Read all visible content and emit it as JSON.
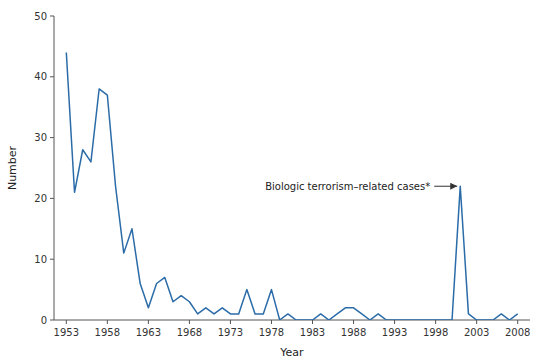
{
  "chart_data": {
    "type": "line",
    "x": [
      1953,
      1954,
      1955,
      1956,
      1957,
      1958,
      1959,
      1960,
      1961,
      1962,
      1963,
      1964,
      1965,
      1966,
      1967,
      1968,
      1969,
      1970,
      1971,
      1972,
      1973,
      1974,
      1975,
      1976,
      1977,
      1978,
      1979,
      1980,
      1981,
      1982,
      1983,
      1984,
      1985,
      1986,
      1987,
      1988,
      1989,
      1990,
      1991,
      1992,
      1993,
      1994,
      1995,
      1996,
      1997,
      1998,
      1999,
      2000,
      2001,
      2002,
      2003,
      2004,
      2005,
      2006,
      2007,
      2008
    ],
    "values": [
      44,
      21,
      28,
      26,
      38,
      37,
      22,
      11,
      15,
      6,
      2,
      6,
      7,
      3,
      4,
      3,
      1,
      2,
      1,
      2,
      1,
      1,
      5,
      1,
      1,
      5,
      0,
      1,
      0,
      0,
      0,
      1,
      0,
      1,
      2,
      2,
      1,
      0,
      1,
      0,
      0,
      0,
      0,
      0,
      0,
      0,
      0,
      0,
      22,
      1,
      0,
      0,
      0,
      1,
      0,
      1
    ],
    "color": "#2b6ca8",
    "xlabel": "Year",
    "ylabel": "Number",
    "xlim": [
      1951.5,
      2009.5
    ],
    "ylim": [
      0,
      50
    ],
    "xticks": [
      1953,
      1958,
      1963,
      1968,
      1973,
      1978,
      1983,
      1988,
      1993,
      1998,
      2003,
      2008
    ],
    "yticks": [
      0,
      10,
      20,
      30,
      40,
      50
    ],
    "grid": false,
    "annotations": [
      {
        "text": "Biologic terrorism–related cases*",
        "x": 2001,
        "y": 22
      }
    ]
  }
}
